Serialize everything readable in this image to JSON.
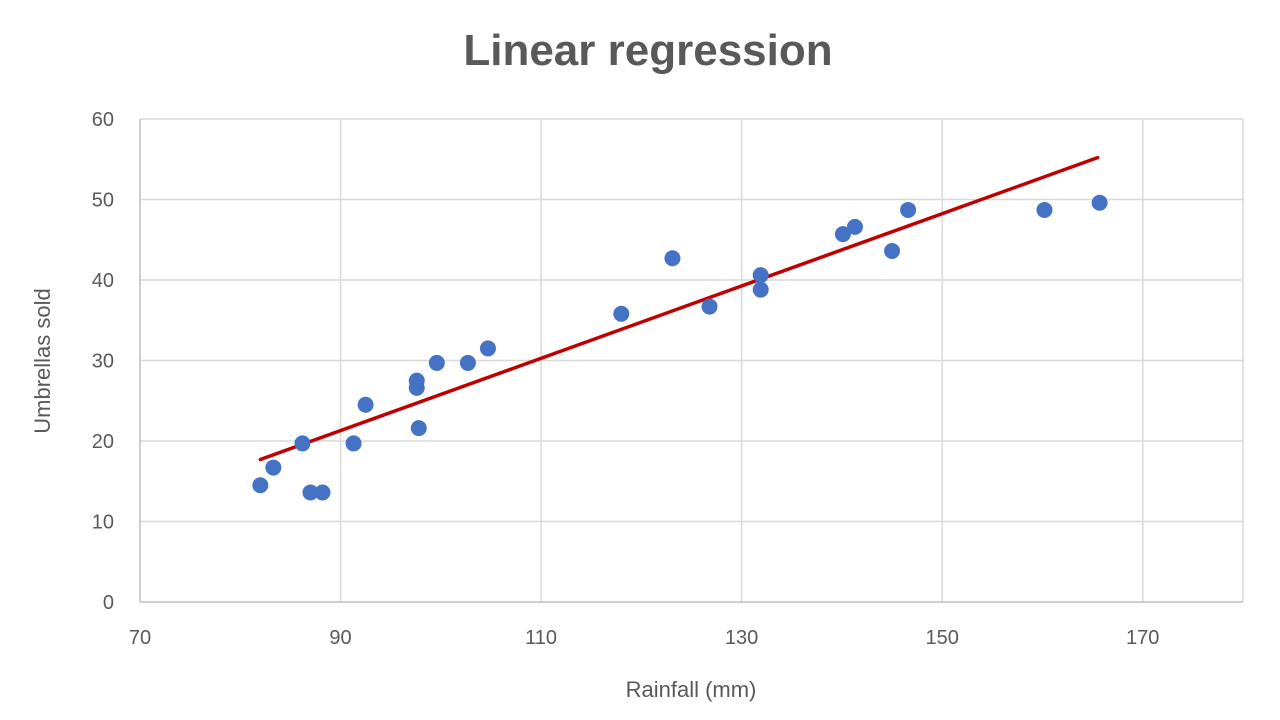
{
  "chart_data": {
    "type": "scatter",
    "title": "Linear regression",
    "xlabel": "Rainfall (mm)",
    "ylabel": "Umbrellas sold",
    "xlim": [
      70,
      180
    ],
    "ylim": [
      0,
      60
    ],
    "xticks": [
      70,
      90,
      110,
      130,
      150,
      170
    ],
    "yticks": [
      0,
      10,
      20,
      30,
      40,
      50,
      60
    ],
    "grid": true,
    "legend": "none",
    "series": [
      {
        "points": [
          {
            "x": 82.0,
            "y": 14.5
          },
          {
            "x": 83.3,
            "y": 16.7
          },
          {
            "x": 86.2,
            "y": 19.7
          },
          {
            "x": 87.0,
            "y": 13.6
          },
          {
            "x": 88.2,
            "y": 13.6
          },
          {
            "x": 91.3,
            "y": 19.7
          },
          {
            "x": 92.5,
            "y": 24.5
          },
          {
            "x": 97.6,
            "y": 27.5
          },
          {
            "x": 97.6,
            "y": 26.6
          },
          {
            "x": 97.8,
            "y": 21.6
          },
          {
            "x": 99.6,
            "y": 29.7
          },
          {
            "x": 102.7,
            "y": 29.7
          },
          {
            "x": 104.7,
            "y": 31.5
          },
          {
            "x": 118.0,
            "y": 35.8
          },
          {
            "x": 123.1,
            "y": 42.7
          },
          {
            "x": 126.8,
            "y": 36.7
          },
          {
            "x": 131.9,
            "y": 40.6
          },
          {
            "x": 131.9,
            "y": 38.8
          },
          {
            "x": 140.1,
            "y": 45.7
          },
          {
            "x": 141.3,
            "y": 46.6
          },
          {
            "x": 145.0,
            "y": 43.6
          },
          {
            "x": 146.6,
            "y": 48.7
          },
          {
            "x": 160.2,
            "y": 48.7
          },
          {
            "x": 165.7,
            "y": 49.6
          }
        ]
      }
    ],
    "trendline": {
      "x": [
        82.0,
        165.5
      ],
      "y": [
        17.7,
        55.2
      ]
    },
    "colors": {
      "points": "#4472C4",
      "trendline": "#C00000",
      "grid": "#D9D9D9",
      "text": "#595959"
    }
  }
}
